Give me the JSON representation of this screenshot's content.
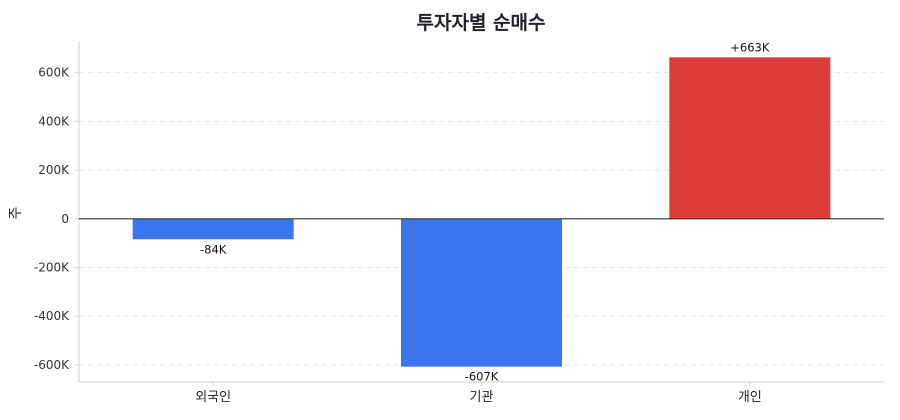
{
  "chart_data": {
    "type": "bar",
    "title": "투자자별 순매수",
    "xlabel": "",
    "ylabel": "주",
    "categories": [
      "외국인",
      "기관",
      "개인"
    ],
    "values": [
      -84000,
      -607000,
      663000
    ],
    "value_labels": [
      "-84K",
      "-607K",
      "+663K"
    ],
    "bar_colors": [
      "#3b76ee",
      "#3b76ee",
      "#e03b3b"
    ],
    "positive_color": "#e03b3b",
    "negative_color": "#3b76ee",
    "ylim": [
      -670000,
      730000
    ],
    "yticks": [
      -600000,
      -400000,
      -200000,
      0,
      200000,
      400000,
      600000
    ],
    "ytick_labels": [
      "-600K",
      "-400K",
      "-200K",
      "0",
      "200K",
      "400K",
      "600K"
    ],
    "grid": true,
    "legend": "none"
  }
}
